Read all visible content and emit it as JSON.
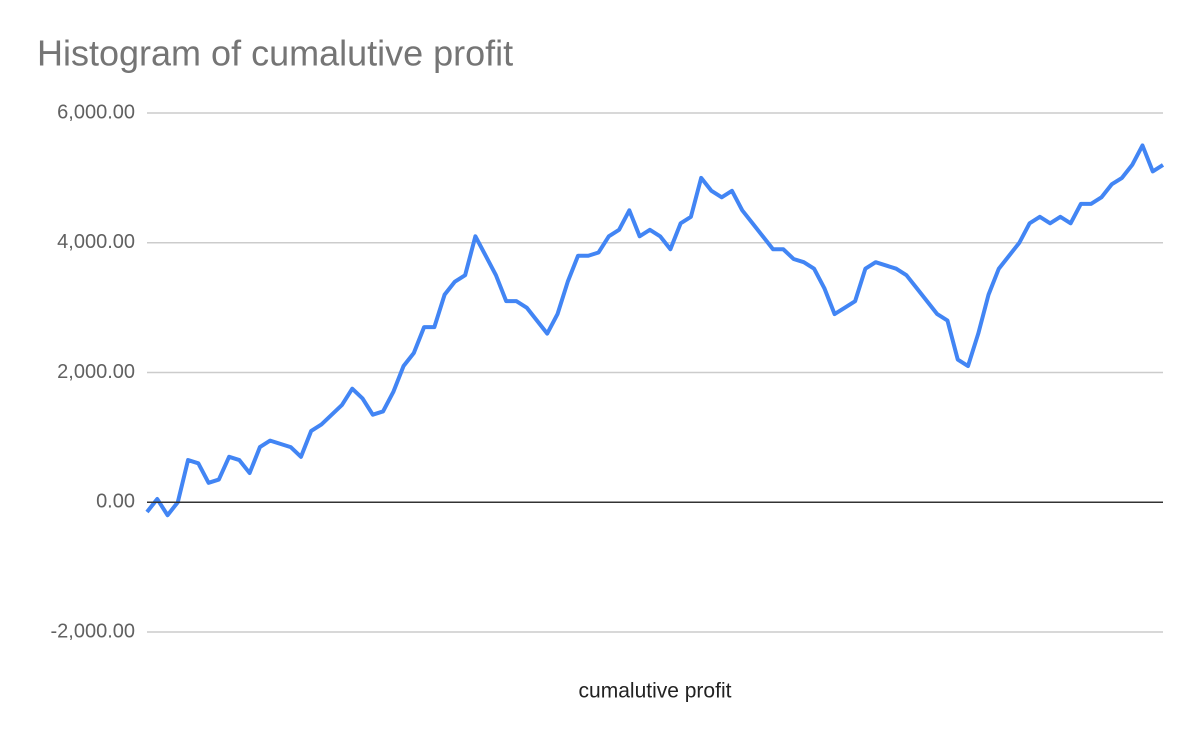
{
  "chart_data": {
    "type": "line",
    "title": "Histogram of cumalutive profit",
    "x_label": "cumalutive profit",
    "series": [
      {
        "name": "cumalutive profit",
        "color": "#4285f4",
        "values": [
          -150,
          50,
          -200,
          0,
          650,
          600,
          300,
          350,
          700,
          650,
          450,
          850,
          950,
          900,
          850,
          700,
          1100,
          1200,
          1350,
          1500,
          1750,
          1600,
          1350,
          1400,
          1700,
          2100,
          2300,
          2700,
          2700,
          3200,
          3400,
          3500,
          4100,
          3800,
          3500,
          3100,
          3100,
          3000,
          2800,
          2600,
          2900,
          3400,
          3800,
          3800,
          3850,
          4100,
          4200,
          4500,
          4100,
          4200,
          4100,
          3900,
          4300,
          4400,
          5000,
          4800,
          4700,
          4800,
          4500,
          4300,
          4100,
          3900,
          3900,
          3750,
          3700,
          3600,
          3300,
          2900,
          3000,
          3100,
          3600,
          3700,
          3650,
          3600,
          3500,
          3300,
          3100,
          2900,
          2800,
          2200,
          2100,
          2600,
          3200,
          3600,
          3800,
          4000,
          4300,
          4400,
          4300,
          4400,
          4300,
          4600,
          4600,
          4700,
          4900,
          5000,
          5200,
          5500,
          5100,
          5200
        ]
      }
    ],
    "ylim": [
      -2000,
      6000
    ],
    "yticks": [
      {
        "value": -2000,
        "label": "-2,000.00"
      },
      {
        "value": 0,
        "label": "0.00"
      },
      {
        "value": 2000,
        "label": "2,000.00"
      },
      {
        "value": 4000,
        "label": "4,000.00"
      },
      {
        "value": 6000,
        "label": "6,000.00"
      }
    ],
    "grid": true
  }
}
